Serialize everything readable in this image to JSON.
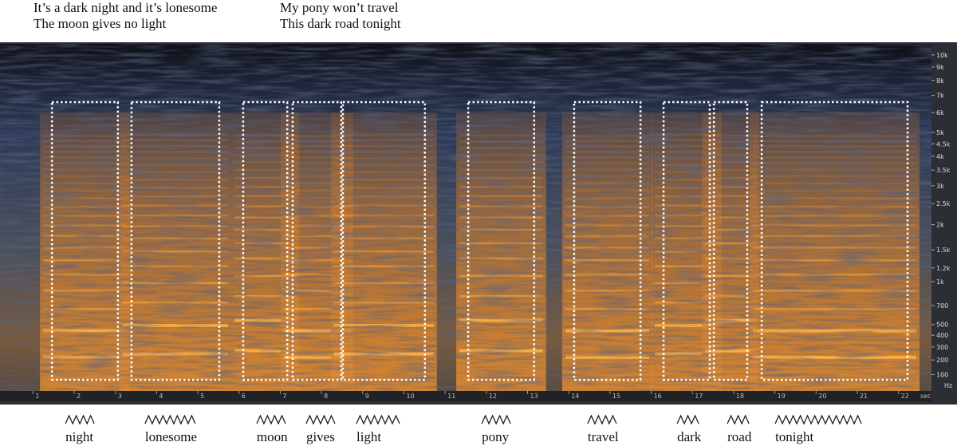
{
  "lyrics": [
    [
      "It’s a dark night and it’s lonesome",
      "The moon gives no light"
    ],
    [
      "My pony won’t travel",
      "This dark road tonight"
    ]
  ],
  "spectrogram": {
    "time_unit": "sec",
    "freq_unit": "Hz",
    "xlim": [
      0.2,
      22.8
    ],
    "ylim": [
      0,
      11000
    ],
    "xticks": [
      1,
      2,
      3,
      4,
      5,
      6,
      7,
      8,
      9,
      10,
      11,
      12,
      13,
      14,
      15,
      16,
      17,
      18,
      19,
      20,
      21,
      22
    ],
    "yticks": [
      {
        "value": 10000,
        "label": "10k"
      },
      {
        "value": 9000,
        "label": "9k"
      },
      {
        "value": 8000,
        "label": "8k"
      },
      {
        "value": 7000,
        "label": "7k"
      },
      {
        "value": 6000,
        "label": "6k"
      },
      {
        "value": 5000,
        "label": "5k"
      },
      {
        "value": 4500,
        "label": "4.5k"
      },
      {
        "value": 4000,
        "label": "4k"
      },
      {
        "value": 3500,
        "label": "3.5k"
      },
      {
        "value": 3000,
        "label": "3k"
      },
      {
        "value": 2500,
        "label": "2.5k"
      },
      {
        "value": 2000,
        "label": "2k"
      },
      {
        "value": 1500,
        "label": "1.5k"
      },
      {
        "value": 1200,
        "label": "1.2k"
      },
      {
        "value": 1000,
        "label": "1k"
      },
      700,
      500,
      400,
      300,
      200,
      100
    ]
  },
  "words": [
    {
      "text": "night",
      "start": 1.46,
      "end": 3.06
    },
    {
      "text": "lonesome",
      "start": 3.39,
      "end": 5.52
    },
    {
      "text": "moon",
      "start": 6.1,
      "end": 7.17
    },
    {
      "text": "gives",
      "start": 7.3,
      "end": 8.48
    },
    {
      "text": "light",
      "start": 8.52,
      "end": 10.51
    },
    {
      "text": "pony",
      "start": 11.56,
      "end": 13.16
    },
    {
      "text": "travel",
      "start": 14.13,
      "end": 15.74
    },
    {
      "text": "dark",
      "start": 16.3,
      "end": 17.42
    },
    {
      "text": "road",
      "start": 17.52,
      "end": 18.33
    },
    {
      "text": "tonight",
      "start": 18.68,
      "end": 22.22
    }
  ]
}
